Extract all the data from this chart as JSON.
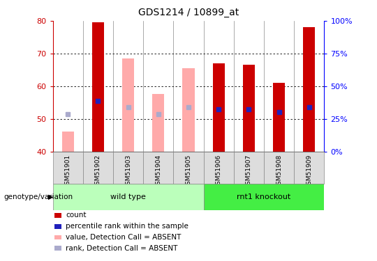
{
  "title": "GDS1214 / 10899_at",
  "samples": [
    "GSM51901",
    "GSM51902",
    "GSM51903",
    "GSM51904",
    "GSM51905",
    "GSM51906",
    "GSM51907",
    "GSM51908",
    "GSM51909"
  ],
  "group_positions": {
    "wild type": [
      0,
      5
    ],
    "rnt1 knockout": [
      5,
      9
    ]
  },
  "ylim": [
    40,
    80
  ],
  "right_yticks": [
    0,
    25,
    50,
    75,
    100
  ],
  "right_yticklabels": [
    "0%",
    "25%",
    "50%",
    "75%",
    "100%"
  ],
  "yticks": [
    40,
    50,
    60,
    70,
    80
  ],
  "red_bars_idx": [
    1,
    5,
    6,
    7,
    8
  ],
  "red_bars_vals": [
    79.5,
    67.0,
    66.5,
    61.0,
    78.0
  ],
  "pink_bars_idx": [
    0,
    2,
    3,
    4
  ],
  "pink_bars_vals": [
    46.0,
    68.5,
    57.5,
    65.5
  ],
  "blue_idx": [
    0,
    1,
    2,
    3,
    4,
    5,
    6,
    7,
    8
  ],
  "blue_vals": [
    51.5,
    55.5,
    53.5,
    51.5,
    53.5,
    53.0,
    53.0,
    52.0,
    53.5
  ],
  "blue_dark": [
    false,
    true,
    false,
    false,
    false,
    true,
    true,
    true,
    true
  ],
  "red_color": "#cc0000",
  "pink_color": "#ffaaaa",
  "dark_blue_color": "#2020bb",
  "light_blue_color": "#aaaacc",
  "group_color_wt": "#bbffbb",
  "group_color_ko": "#44ee44",
  "group_label": "genotype/variation",
  "legend_items": [
    {
      "label": "count",
      "color": "#cc0000"
    },
    {
      "label": "percentile rank within the sample",
      "color": "#2020bb"
    },
    {
      "label": "value, Detection Call = ABSENT",
      "color": "#ffaaaa"
    },
    {
      "label": "rank, Detection Call = ABSENT",
      "color": "#aaaacc"
    }
  ]
}
